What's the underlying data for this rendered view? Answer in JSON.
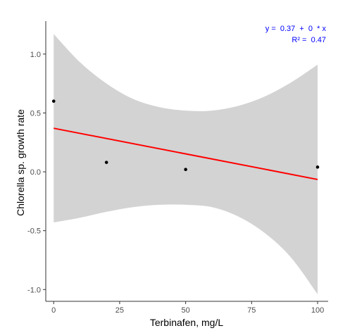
{
  "chart_data": {
    "type": "scatter",
    "title": "",
    "xlabel": "Terbinafen, mg/L",
    "ylabel": "Chlorella sp. growth rate",
    "xlim": [
      -3,
      104
    ],
    "ylim": [
      -1.1,
      1.28
    ],
    "x_ticks": [
      0,
      25,
      50,
      75,
      100
    ],
    "x_tick_labels": [
      "0",
      "25",
      "50",
      "75",
      "100"
    ],
    "y_ticks": [
      -1.0,
      -0.5,
      0.0,
      0.5,
      1.0
    ],
    "y_tick_labels": [
      "-1.0",
      "-0.5",
      "0.0",
      "0.5",
      "1.0"
    ],
    "grid": false,
    "series": [
      {
        "points": [
          {
            "x": 0,
            "y": 0.6
          },
          {
            "x": 20,
            "y": 0.08
          },
          {
            "x": 50,
            "y": 0.02
          },
          {
            "x": 100,
            "y": 0.04
          }
        ]
      }
    ],
    "regression": {
      "x": [
        0,
        100
      ],
      "y": [
        0.37,
        -0.065
      ],
      "color": "#ff0000"
    },
    "confidence_band": {
      "x": [
        0,
        10,
        20,
        30,
        40,
        50,
        60,
        70,
        80,
        90,
        100
      ],
      "upper": [
        1.17,
        0.93,
        0.75,
        0.62,
        0.55,
        0.52,
        0.52,
        0.56,
        0.64,
        0.76,
        0.91
      ],
      "lower": [
        -0.43,
        -0.39,
        -0.34,
        -0.3,
        -0.28,
        -0.28,
        -0.3,
        -0.38,
        -0.52,
        -0.73,
        -1.04
      ],
      "color": "#d3d3d3"
    },
    "annotation": {
      "equation": "y =  0.37  +  0  * x",
      "r2": "R² =  0.47",
      "color": "#0000ff",
      "placement": "top-right"
    }
  }
}
